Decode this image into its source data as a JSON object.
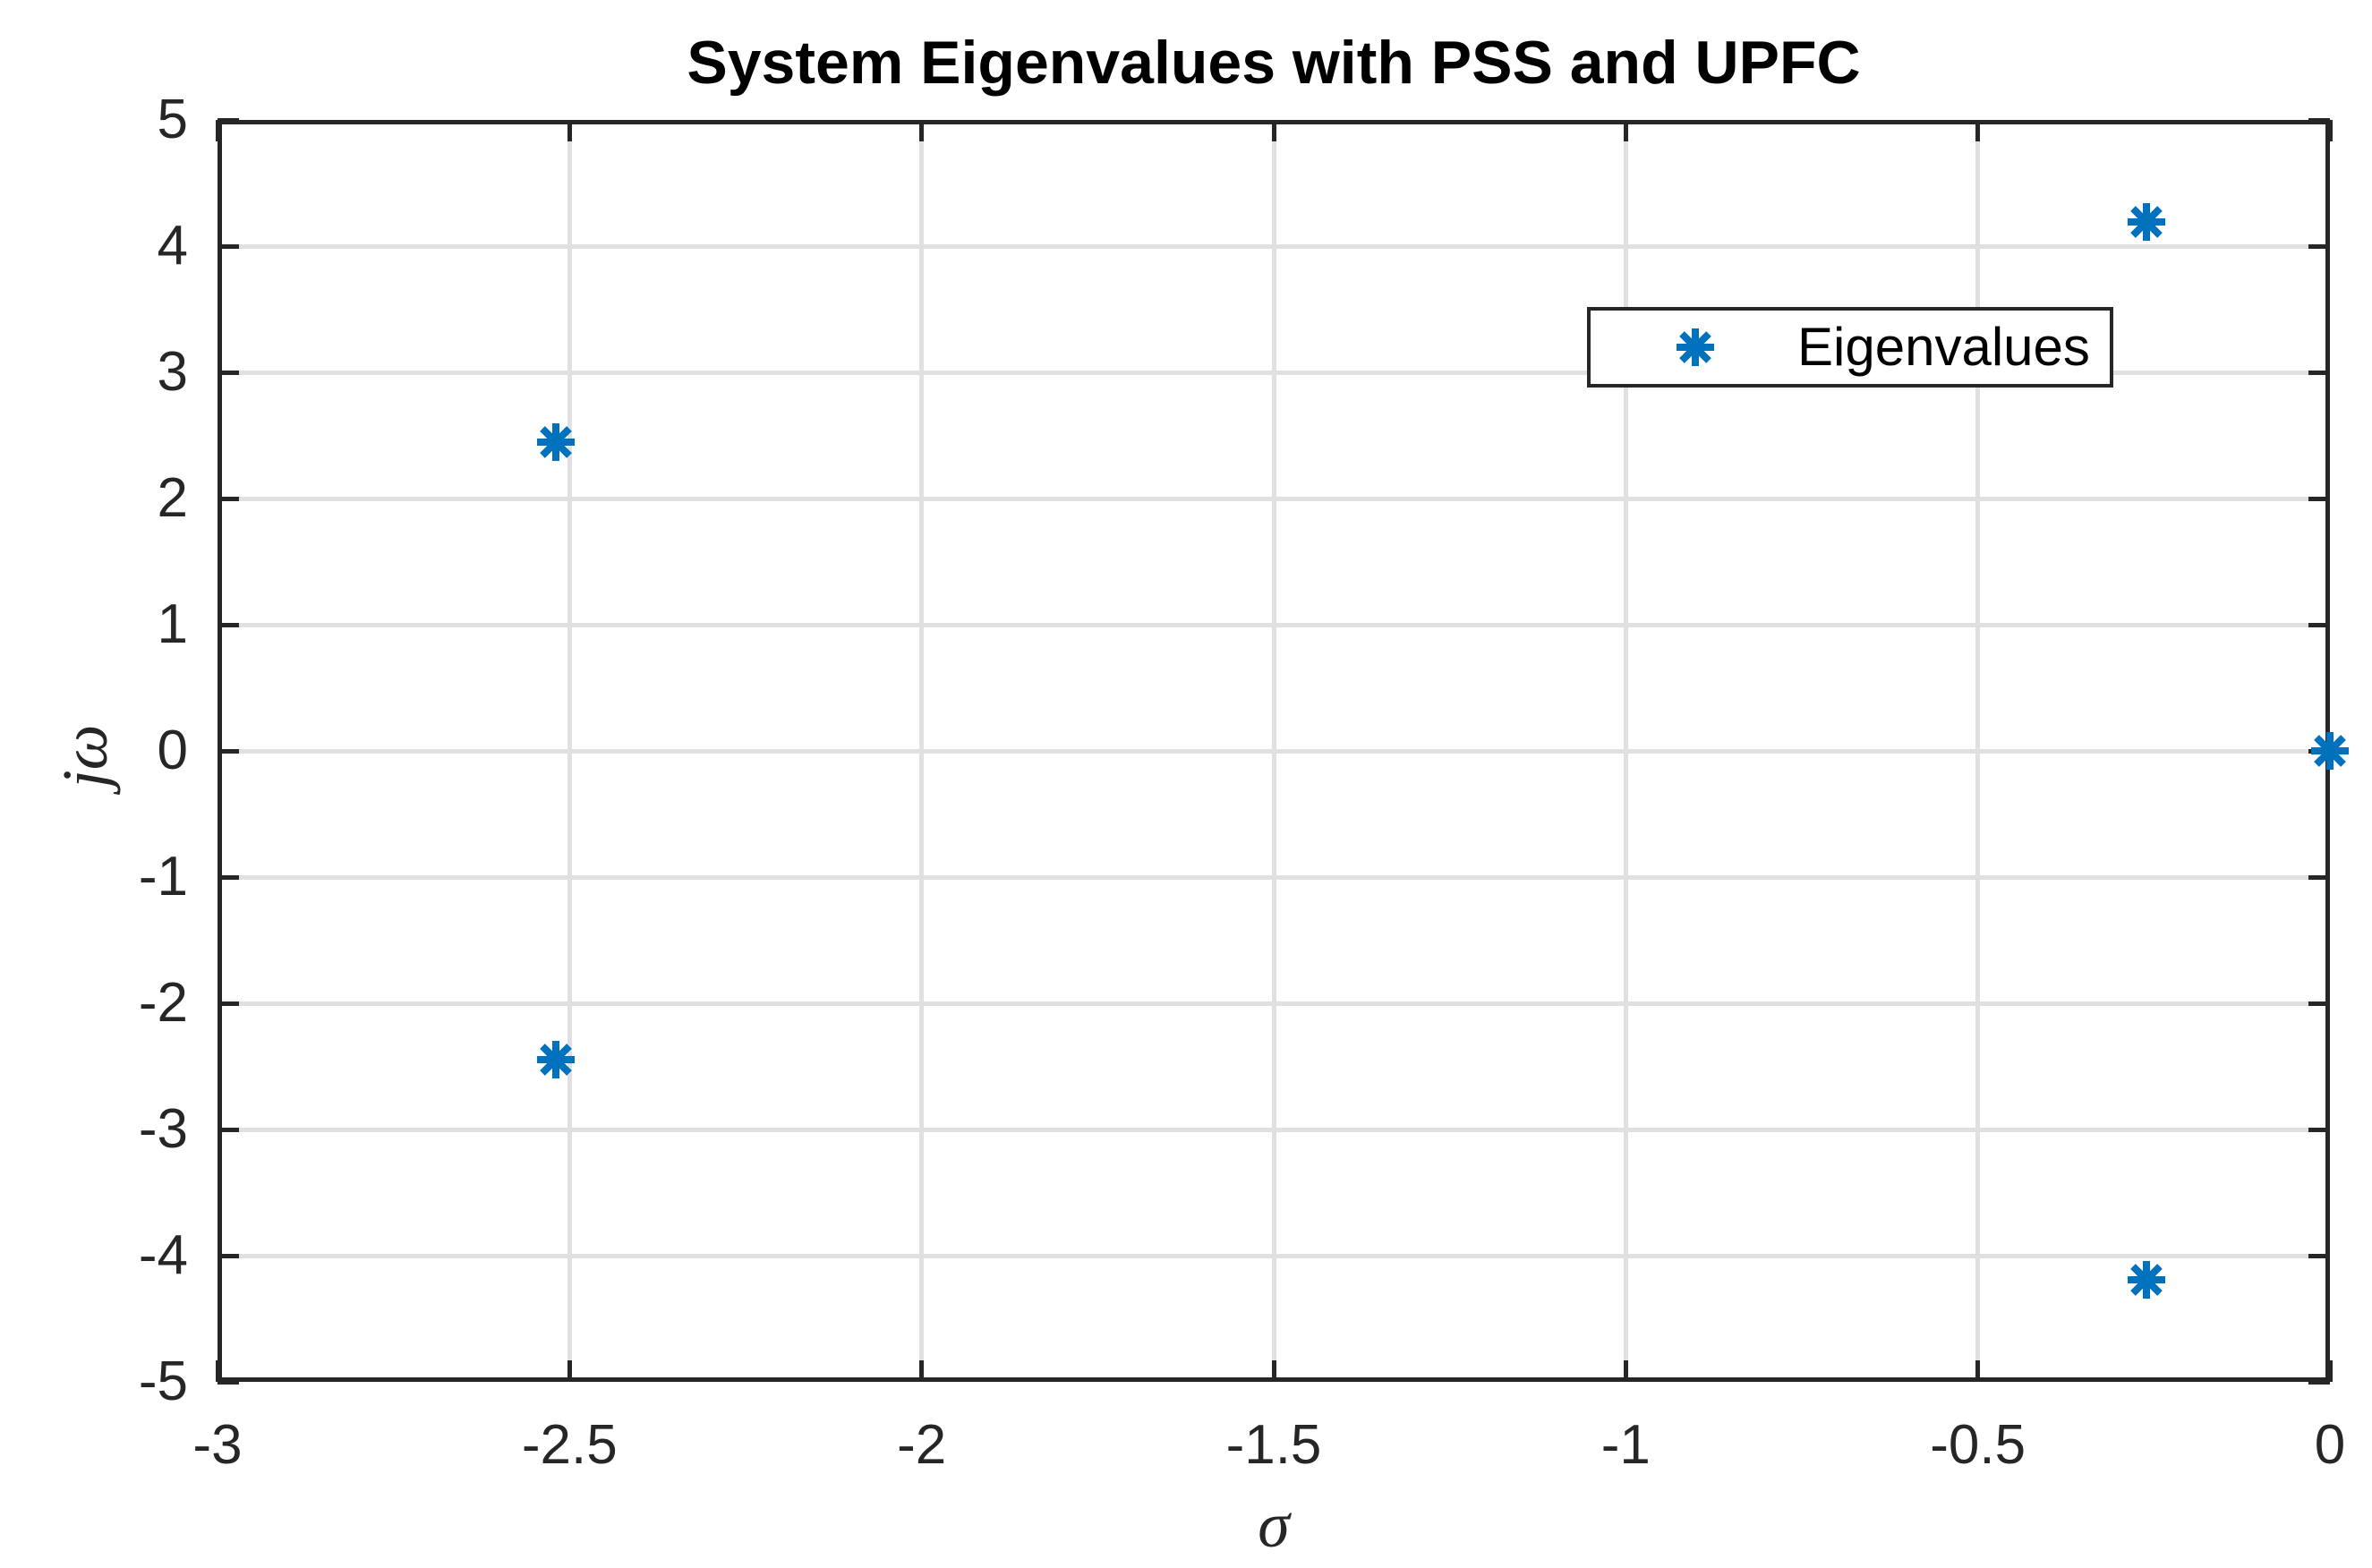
{
  "chart_data": {
    "type": "scatter",
    "title": "System Eigenvalues with PSS and UPFC",
    "xlabel": "σ",
    "ylabel": "jω",
    "xlim": [
      -3,
      0
    ],
    "ylim": [
      -5,
      5
    ],
    "xticks": [
      -3,
      -2.5,
      -2,
      -1.5,
      -1,
      -0.5,
      0
    ],
    "yticks": [
      -5,
      -4,
      -3,
      -2,
      -1,
      0,
      1,
      2,
      3,
      4,
      5
    ],
    "grid": true,
    "legend": {
      "label": "Eigenvalues",
      "position": "upper right",
      "marker": "asterisk"
    },
    "series": [
      {
        "name": "Eigenvalues",
        "marker": "asterisk",
        "color": "#0072BD",
        "points": [
          {
            "x": -2.52,
            "y": 2.45
          },
          {
            "x": -2.52,
            "y": -2.45
          },
          {
            "x": -0.26,
            "y": 4.19
          },
          {
            "x": -0.26,
            "y": -4.19
          },
          {
            "x": 0,
            "y": 0
          }
        ]
      }
    ],
    "colors": {
      "marker": "#0072BD",
      "grid": "#e0e0e0",
      "axis": "#262626",
      "background": "#ffffff"
    }
  }
}
